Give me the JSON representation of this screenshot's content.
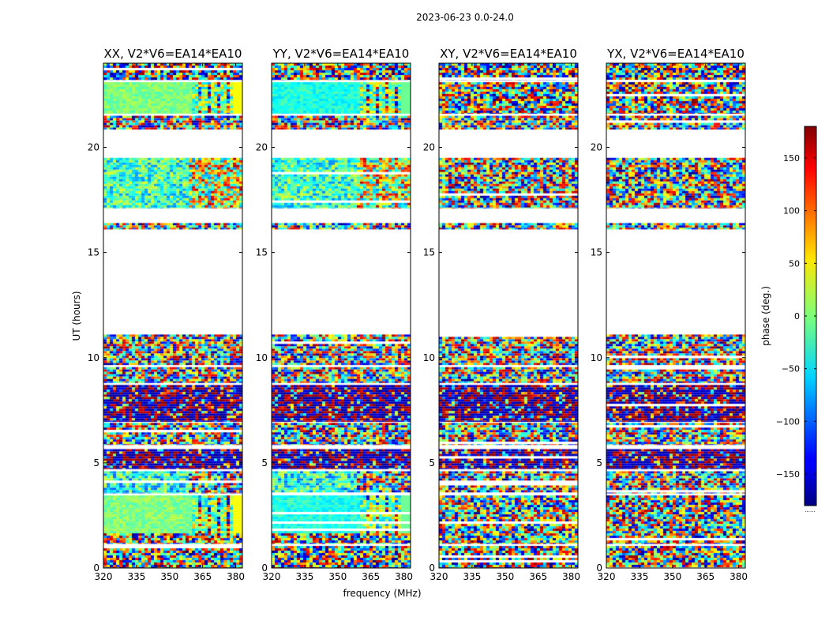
{
  "chart_data": {
    "type": "heatmap",
    "suptitle": "2023-06-23 0.0-24.0",
    "xlabel": "frequency (MHz)",
    "ylabel": "UT (hours)",
    "colorbar_label": "phase (deg.)",
    "colorbar_ticks": [
      150,
      100,
      50,
      0,
      -50,
      -100,
      -150
    ],
    "colorbar_tick_labels": [
      "150",
      "100",
      "50",
      "0",
      "−50",
      "−100",
      "−150"
    ],
    "colorbar_range": [
      -180,
      180
    ],
    "colorbar_footer": "......",
    "colormap": "jet",
    "xlim": [
      320,
      383
    ],
    "ylim": [
      0,
      24
    ],
    "xticks": [
      320,
      335,
      350,
      365,
      380
    ],
    "xtick_labels": [
      "320",
      "335",
      "350",
      "365",
      "380"
    ],
    "yticks": [
      0,
      5,
      10,
      15,
      20
    ],
    "ytick_labels": [
      "0",
      "5",
      "10",
      "15",
      "20"
    ],
    "panels": [
      {
        "title": "XX, V2*V6=EA14*EA10",
        "pol": "XX"
      },
      {
        "title": "YY, V2*V6=EA14*EA10",
        "pol": "YY"
      },
      {
        "title": "XY, V2*V6=EA14*EA10",
        "pol": "XY"
      },
      {
        "title": "YX, V2*V6=EA14*EA10",
        "pol": "YX"
      }
    ],
    "data_segments_ut": [
      [
        0.0,
        1.05,
        "noisy"
      ],
      [
        1.15,
        1.65,
        "noisy"
      ],
      [
        1.65,
        3.45,
        "calibrator"
      ],
      [
        3.55,
        4.6,
        "mixed"
      ],
      [
        4.7,
        5.65,
        "dark"
      ],
      [
        5.85,
        6.9,
        "noisy"
      ],
      [
        6.95,
        8.7,
        "dark"
      ],
      [
        8.8,
        9.55,
        "noisy"
      ],
      [
        9.65,
        11.1,
        "noisy"
      ],
      [
        16.1,
        16.4,
        "noisy"
      ],
      [
        17.1,
        19.5,
        "blue"
      ],
      [
        20.85,
        21.5,
        "noisy"
      ],
      [
        21.6,
        23.1,
        "calibrator"
      ],
      [
        23.2,
        24.0,
        "noisy"
      ]
    ]
  }
}
